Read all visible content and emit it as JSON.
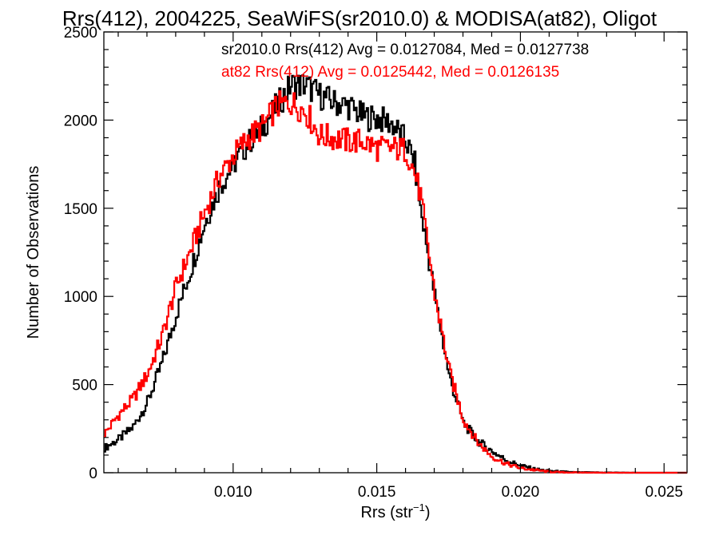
{
  "chart_data": {
    "type": "line",
    "step": true,
    "title": "Rrs(412), 2004225, SeaWiFS(sr2010.0) & MODISA(at82), Oligot",
    "xlabel": "Rrs (str",
    "xlabel_sup": "−1",
    "xlabel_end": ")",
    "ylabel": "Number of Observations",
    "xlim": [
      0.0055,
      0.0258
    ],
    "ylim": [
      0,
      2500
    ],
    "x_ticks": [
      0.01,
      0.015,
      0.02,
      0.025
    ],
    "x_tick_labels": [
      "0.010",
      "0.015",
      "0.020",
      "0.025"
    ],
    "y_ticks": [
      0,
      500,
      1000,
      1500,
      2000,
      2500
    ],
    "y_tick_labels": [
      "0",
      "500",
      "1000",
      "1500",
      "2000",
      "2500"
    ],
    "grid": false,
    "legend": "top-right",
    "annotations": [
      {
        "text": "sr2010.0 Rrs(412) Avg = 0.0127084, Med = 0.0127738",
        "color": "#000000"
      },
      {
        "text": "at82 Rrs(412) Avg = 0.0125442, Med = 0.0126135",
        "color": "#ff0000"
      }
    ],
    "series": [
      {
        "color": "#000000",
        "x": [
          0.0055,
          0.006,
          0.0065,
          0.007,
          0.0075,
          0.008,
          0.0085,
          0.009,
          0.0095,
          0.01,
          0.0105,
          0.011,
          0.0115,
          0.012,
          0.0125,
          0.013,
          0.0135,
          0.014,
          0.0145,
          0.015,
          0.0155,
          0.016,
          0.0163,
          0.0165,
          0.017,
          0.0175,
          0.018,
          0.0185,
          0.019,
          0.0195,
          0.02,
          0.0205,
          0.021,
          0.0215,
          0.022,
          0.023,
          0.024,
          0.0258
        ],
        "y": [
          140,
          190,
          260,
          400,
          620,
          900,
          1150,
          1420,
          1620,
          1750,
          1870,
          1960,
          2080,
          2200,
          2200,
          2140,
          2100,
          2080,
          2020,
          2010,
          1980,
          1880,
          1750,
          1500,
          1000,
          550,
          280,
          180,
          120,
          70,
          40,
          20,
          10,
          5,
          2,
          1,
          0,
          0
        ]
      },
      {
        "color": "#ff0000",
        "x": [
          0.0055,
          0.006,
          0.0065,
          0.007,
          0.0075,
          0.008,
          0.0085,
          0.009,
          0.0095,
          0.01,
          0.0105,
          0.011,
          0.0115,
          0.012,
          0.0125,
          0.013,
          0.0135,
          0.014,
          0.0145,
          0.015,
          0.0155,
          0.016,
          0.0163,
          0.0165,
          0.017,
          0.0175,
          0.018,
          0.0185,
          0.019,
          0.0195,
          0.02,
          0.0205,
          0.021,
          0.0215,
          0.022,
          0.023,
          0.024,
          0.0258
        ],
        "y": [
          220,
          330,
          420,
          560,
          770,
          1060,
          1260,
          1480,
          1680,
          1800,
          1900,
          1960,
          2080,
          2100,
          2050,
          1910,
          1900,
          1880,
          1880,
          1840,
          1840,
          1830,
          1700,
          1570,
          1010,
          580,
          300,
          170,
          90,
          50,
          25,
          15,
          5,
          2,
          1,
          0,
          0,
          0
        ]
      }
    ]
  }
}
